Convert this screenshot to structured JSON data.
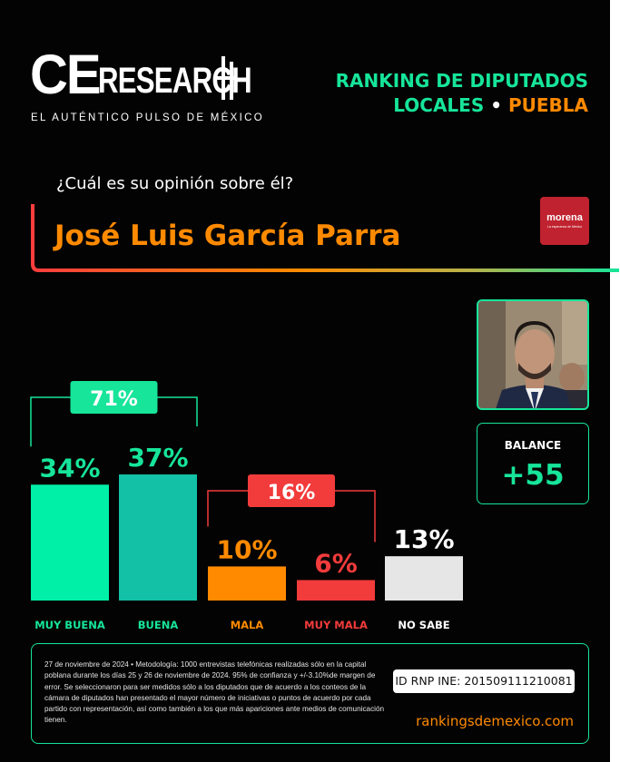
{
  "brand": {
    "logo_ce": "CE",
    "logo_research": "RESEARCH",
    "tagline": "EL AUTÉNTICO PULSO DE MÉXICO"
  },
  "header": {
    "line1": "RANKING DE DIPUTADOS",
    "line2_green": "LOCALES",
    "line2_sep": "•",
    "line2_orange": "PUEBLA"
  },
  "question": "¿Cuál es su opinión sobre él?",
  "candidate": {
    "name": "José Luis García Parra",
    "party": "morena",
    "party_tagline": "La esperanza de México"
  },
  "balance": {
    "label": "BALANCE",
    "value": "+55"
  },
  "colors": {
    "accent_green": "#16e59a",
    "accent_orange": "#ff8a00",
    "red": "#f23b3b",
    "teal": "#12c1a6",
    "gray": "#e6e6e6",
    "morena": "#c0232f"
  },
  "chart_data": {
    "type": "bar",
    "categories": [
      "MUY BUENA",
      "BUENA",
      "MALA",
      "MUY MALA",
      "NO SABE"
    ],
    "values": [
      34,
      37,
      10,
      6,
      13
    ],
    "labels": [
      "34%",
      "37%",
      "10%",
      "6%",
      "13%"
    ],
    "colors": [
      "#00f0a8",
      "#12c1a6",
      "#ff8a00",
      "#f23b3b",
      "#e6e6e6"
    ],
    "label_colors": [
      "#16e59a",
      "#16e59a",
      "#ff8a00",
      "#f23b3b",
      "#ffffff"
    ],
    "category_colors": [
      "#16e59a",
      "#16e59a",
      "#ff8a00",
      "#f23b3b",
      "#ffffff"
    ],
    "groups": [
      {
        "label": "71%",
        "from": 0,
        "to": 1,
        "color": "#16e59a",
        "value": 71
      },
      {
        "label": "16%",
        "from": 2,
        "to": 3,
        "color": "#f23b3b",
        "value": 16
      }
    ],
    "ylim": [
      0,
      40
    ]
  },
  "footer": {
    "methodology": "27 de noviembre de 2024 • Metodología: 1000 entrevistas telefónicas realizadas sólo en la capital poblana durante los días 25 y 26 de noviembre de 2024. 95% de confianza y +/-3.10%de margen de error. Se seleccionaron para ser medidos sólo a los diputados que de acuerdo a los conteos de la cámara de diputados han presentado el mayor número de iniciativas o puntos de acuerdo por cada partido con representación, así como también a los que más apariciones ante medios de comunicación tienen.",
    "rnp": "ID RNP INE: 201509111210081",
    "site": "rankingsdemexico.com"
  }
}
